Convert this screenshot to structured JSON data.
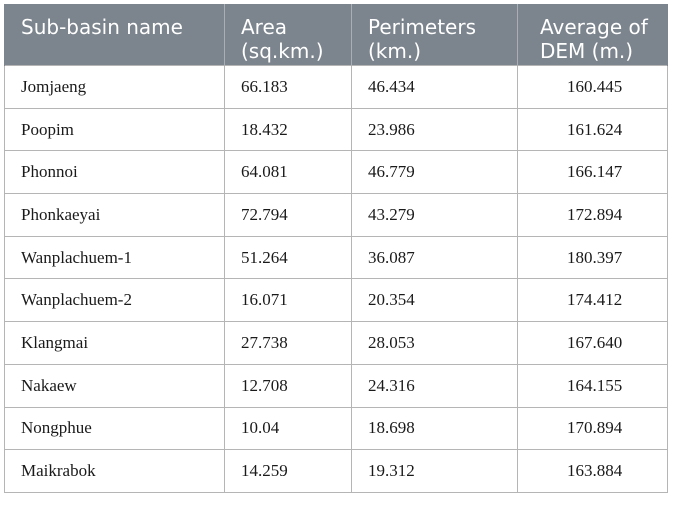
{
  "table": {
    "headers": [
      [
        "Sub-basin name"
      ],
      [
        "Area",
        "(sq.km.)"
      ],
      [
        "Perimeters",
        "(km.)"
      ],
      [
        "Average of",
        "DEM (m.)"
      ]
    ],
    "rows": [
      [
        "Jomjaeng",
        "66.183",
        "46.434",
        "160.445"
      ],
      [
        "Poopim",
        "18.432",
        "23.986",
        "161.624"
      ],
      [
        "Phonnoi",
        "64.081",
        "46.779",
        "166.147"
      ],
      [
        "Phonkaeyai",
        "72.794",
        "43.279",
        "172.894"
      ],
      [
        "Wanplachuem-1",
        "51.264",
        "36.087",
        "180.397"
      ],
      [
        "Wanplachuem-2",
        "16.071",
        "20.354",
        "174.412"
      ],
      [
        "Klangmai",
        "27.738",
        "28.053",
        "167.640"
      ],
      [
        "Nakaew",
        "12.708",
        "24.316",
        "164.155"
      ],
      [
        "Nongphue",
        "10.04",
        "18.698",
        "170.894"
      ],
      [
        "Maikrabok",
        "14.259",
        "19.312",
        "163.884"
      ]
    ]
  }
}
